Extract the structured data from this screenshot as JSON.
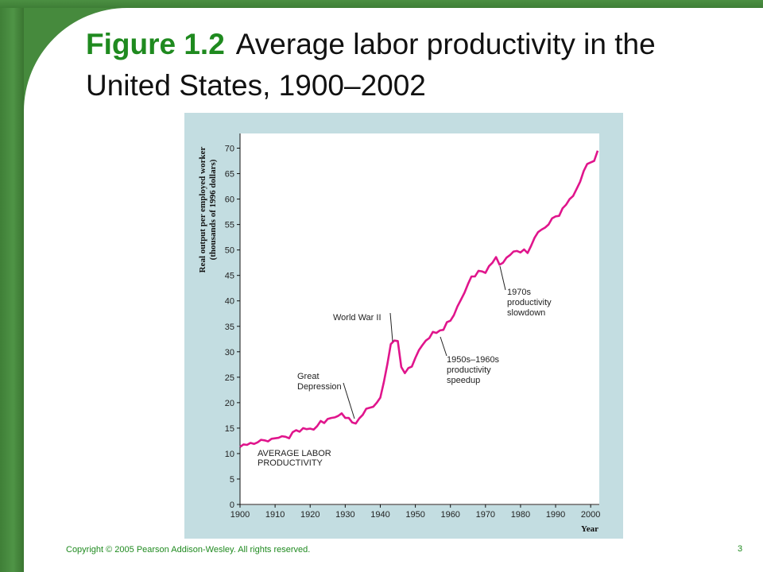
{
  "title": {
    "figure_label": "Figure 1.2",
    "text": "Average labor productivity in the United States, 1900–2002"
  },
  "footer": {
    "copyright": "Copyright © 2005 Pearson Addison-Wesley. All rights reserved.",
    "page_number": "3"
  },
  "colors": {
    "accent_green": "#1f8a1f",
    "chart_background": "#c3dde1",
    "series_line": "#e0158c"
  },
  "chart_data": {
    "type": "line",
    "ylabel_line1": "Real output per employed worker",
    "ylabel_line2": "(thousands of 1996 dollars)",
    "xlabel": "Year",
    "xlim": [
      1900,
      2002
    ],
    "ylim": [
      0,
      70
    ],
    "x_ticks": [
      1900,
      1910,
      1920,
      1930,
      1940,
      1950,
      1960,
      1970,
      1980,
      1990,
      2000
    ],
    "y_ticks": [
      0,
      5,
      10,
      15,
      20,
      25,
      30,
      35,
      40,
      45,
      50,
      55,
      60,
      65,
      70
    ],
    "grid": false,
    "series": [
      {
        "name": "AVERAGE LABOR PRODUCTIVITY",
        "x": [
          1900,
          1901,
          1902,
          1903,
          1904,
          1905,
          1906,
          1907,
          1908,
          1909,
          1910,
          1911,
          1912,
          1913,
          1914,
          1915,
          1916,
          1917,
          1918,
          1919,
          1920,
          1921,
          1922,
          1923,
          1924,
          1925,
          1926,
          1927,
          1928,
          1929,
          1930,
          1931,
          1932,
          1933,
          1934,
          1935,
          1936,
          1937,
          1938,
          1939,
          1940,
          1941,
          1942,
          1943,
          1944,
          1945,
          1946,
          1947,
          1948,
          1949,
          1950,
          1951,
          1952,
          1953,
          1954,
          1955,
          1956,
          1957,
          1958,
          1959,
          1960,
          1961,
          1962,
          1963,
          1964,
          1965,
          1966,
          1967,
          1968,
          1969,
          1970,
          1971,
          1972,
          1973,
          1974,
          1975,
          1976,
          1977,
          1978,
          1979,
          1980,
          1981,
          1982,
          1983,
          1984,
          1985,
          1986,
          1987,
          1988,
          1989,
          1990,
          1991,
          1992,
          1993,
          1994,
          1995,
          1996,
          1997,
          1998,
          1999,
          2000,
          2001,
          2002
        ],
        "values": [
          11.3,
          11.8,
          11.7,
          12.1,
          11.9,
          12.2,
          12.7,
          12.6,
          12.4,
          12.9,
          13.0,
          13.1,
          13.4,
          13.3,
          13.0,
          14.2,
          14.6,
          14.3,
          15.0,
          14.8,
          14.9,
          14.7,
          15.4,
          16.4,
          16.0,
          16.8,
          17.0,
          17.1,
          17.4,
          17.9,
          17.0,
          17.0,
          16.1,
          15.9,
          16.9,
          17.6,
          18.8,
          19.0,
          19.2,
          20.0,
          21.0,
          24.0,
          27.5,
          31.5,
          32.2,
          32.1,
          27.0,
          25.8,
          26.8,
          27.1,
          28.8,
          30.3,
          31.3,
          32.2,
          32.7,
          33.9,
          33.7,
          34.2,
          34.3,
          35.8,
          36.1,
          37.2,
          38.9,
          40.2,
          41.6,
          43.3,
          44.8,
          44.8,
          45.9,
          45.8,
          45.5,
          46.8,
          47.5,
          48.6,
          47.1,
          47.5,
          48.5,
          49.0,
          49.7,
          49.8,
          49.5,
          50.1,
          49.4,
          50.8,
          52.4,
          53.5,
          54.0,
          54.4,
          55.0,
          56.2,
          56.6,
          56.7,
          58.2,
          58.9,
          60.0,
          60.6,
          62.0,
          63.4,
          65.5,
          66.9,
          67.2,
          67.5,
          69.5
        ]
      }
    ],
    "annotations": [
      {
        "lines": [
          "AVERAGE LABOR",
          "PRODUCTIVITY"
        ]
      },
      {
        "lines": [
          "Great",
          "Depression"
        ]
      },
      {
        "lines": [
          "World War II"
        ]
      },
      {
        "lines": [
          "1950s–1960s",
          "productivity",
          "speedup"
        ]
      },
      {
        "lines": [
          "1970s",
          "productivity",
          "slowdown"
        ]
      }
    ]
  }
}
